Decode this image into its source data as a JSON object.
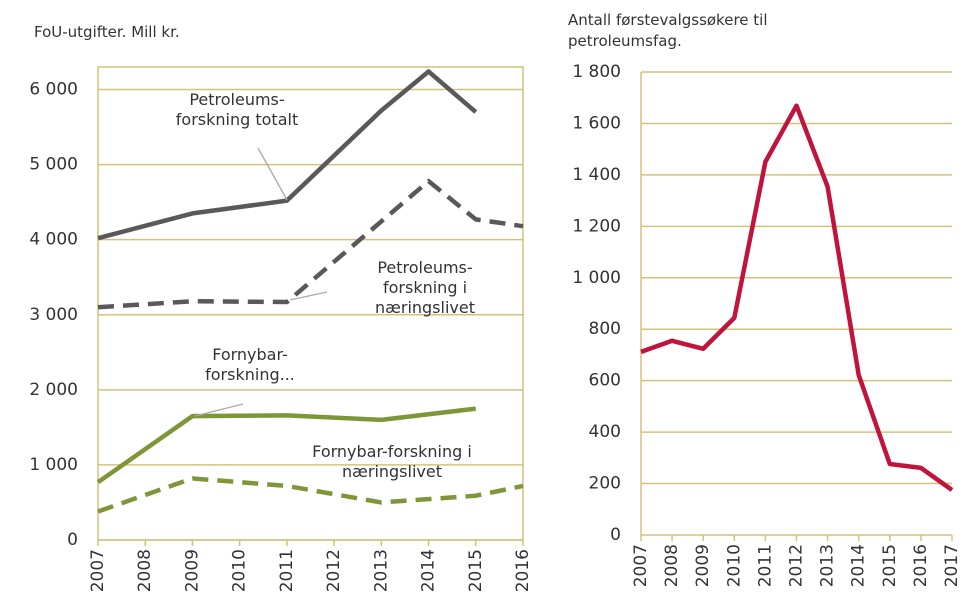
{
  "chart_data": [
    {
      "type": "line",
      "title": "FoU-utgifter. Mill kr.",
      "xlim": [
        2007,
        2016
      ],
      "xticks": [
        2007,
        2008,
        2009,
        2010,
        2011,
        2012,
        2013,
        2014,
        2015,
        2016
      ],
      "ylim": [
        0,
        6300
      ],
      "yticks": [
        0,
        {
          "value": 1000,
          "label": "1 000"
        },
        {
          "value": 2000,
          "label": "2 000"
        },
        {
          "value": 3000,
          "label": "3 000"
        },
        {
          "value": 4000,
          "label": "4 000"
        },
        {
          "value": 5000,
          "label": "5 000"
        },
        {
          "value": 6000,
          "label": "6 000"
        }
      ],
      "grid": true,
      "series": [
        {
          "name": "Petroleums-\nforskning totalt",
          "color": "#595959",
          "dashed": false,
          "x": [
            2007,
            2009,
            2011,
            2013,
            2014,
            2015
          ],
          "values": [
            4020,
            4350,
            4520,
            5720,
            6240,
            5700
          ]
        },
        {
          "name": "Petroleums-\nforskning i\nnæringslivet",
          "color": "#595959",
          "dashed": true,
          "x": [
            2007,
            2009,
            2011,
            2014,
            2015,
            2016
          ],
          "values": [
            3100,
            3180,
            3170,
            4780,
            4270,
            4180
          ]
        },
        {
          "name": "Fornybar-\nforskning...",
          "color": "#7f9638",
          "dashed": false,
          "x": [
            2007,
            2009,
            2011,
            2013,
            2015
          ],
          "values": [
            770,
            1650,
            1660,
            1600,
            1750
          ]
        },
        {
          "name": "Fornybar-forskning i\nnæringslivet",
          "color": "#7f9638",
          "dashed": true,
          "x": [
            2007,
            2009,
            2011,
            2013,
            2015,
            2016
          ],
          "values": [
            380,
            820,
            720,
            500,
            590,
            720
          ]
        }
      ]
    },
    {
      "type": "line",
      "title": "Antall førstevalgssøkere til petroleumsfag.",
      "xlim": [
        2007,
        2017
      ],
      "xticks": [
        2007,
        2008,
        2009,
        2010,
        2011,
        2012,
        2013,
        2014,
        2015,
        2016,
        2017
      ],
      "ylim": [
        0,
        1800
      ],
      "yticks": [
        0,
        200,
        400,
        600,
        800,
        {
          "value": 1000,
          "label": "1 000"
        },
        {
          "value": 1200,
          "label": "1 200"
        },
        {
          "value": 1400,
          "label": "1 400"
        },
        {
          "value": 1600,
          "label": "1 600"
        },
        {
          "value": 1800,
          "label": "1 800"
        }
      ],
      "grid": true,
      "series": [
        {
          "color": "#c0143c",
          "dashed": false,
          "x": [
            2007,
            2008,
            2009,
            2010,
            2011,
            2012,
            2013,
            2014,
            2015,
            2016,
            2017
          ],
          "values": [
            712,
            755,
            724,
            844,
            1451,
            1669,
            1354,
            622,
            276,
            261,
            175
          ]
        }
      ]
    }
  ]
}
